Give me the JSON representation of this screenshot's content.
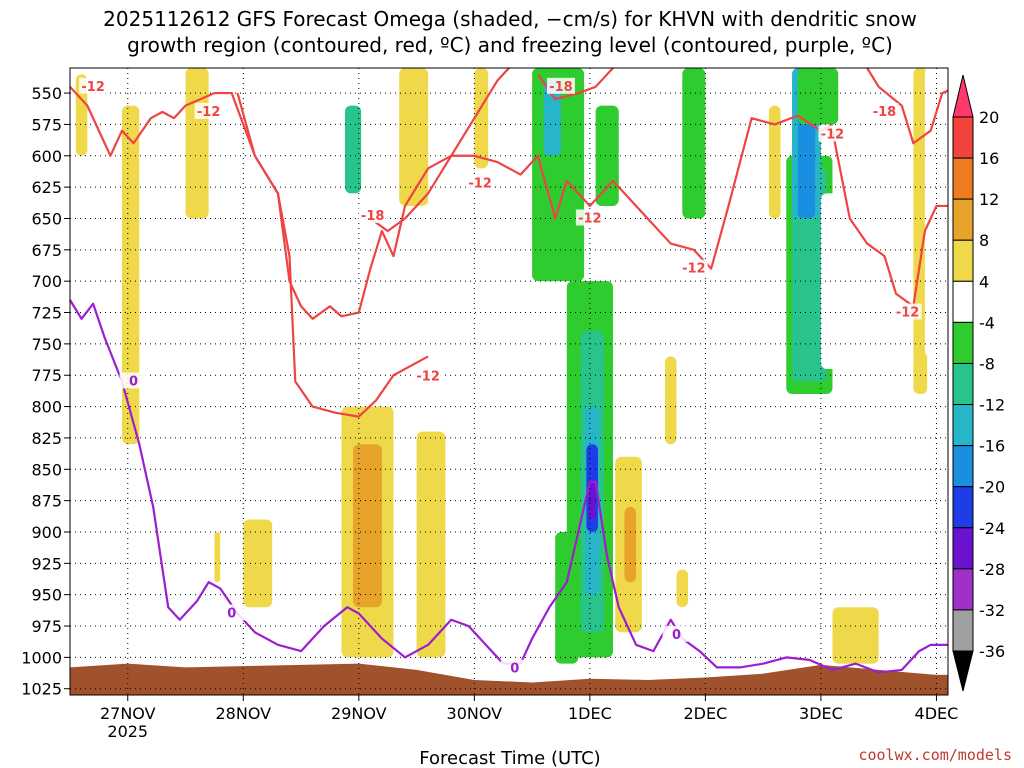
{
  "chart_data": {
    "type": "time-height cross-section",
    "title_line1": "2025112612 GFS Forecast Omega (shaded, −cm/s) for KHVN with dendritic snow",
    "title_line2": "growth region (contoured, red, ºC) and freezing level (contoured, purple, ºC)",
    "xlabel": "Forecast Time (UTC)",
    "credit": "coolwx.com/models",
    "y_ticks": [
      550,
      575,
      600,
      625,
      650,
      675,
      700,
      725,
      750,
      775,
      800,
      825,
      850,
      875,
      900,
      925,
      950,
      975,
      1000,
      1025
    ],
    "y_range": [
      530,
      1030
    ],
    "x_range": [
      0,
      7.6
    ],
    "x_ticks": [
      {
        "t": 0.5,
        "label": "27NOV",
        "sub": "2025"
      },
      {
        "t": 1.5,
        "label": "28NOV",
        "sub": ""
      },
      {
        "t": 2.5,
        "label": "29NOV",
        "sub": ""
      },
      {
        "t": 3.5,
        "label": "30NOV",
        "sub": ""
      },
      {
        "t": 4.5,
        "label": "1DEC",
        "sub": ""
      },
      {
        "t": 5.5,
        "label": "2DEC",
        "sub": ""
      },
      {
        "t": 6.5,
        "label": "3DEC",
        "sub": ""
      },
      {
        "t": 7.5,
        "label": "4DEC",
        "sub": ""
      }
    ],
    "colorbar": {
      "labels": [
        20,
        16,
        12,
        8,
        4,
        -4,
        -8,
        -12,
        -16,
        -20,
        -24,
        -28,
        -32,
        -36
      ],
      "colors": [
        "#ff3a6a",
        "#f2433c",
        "#ee7b20",
        "#e8a42a",
        "#efd84a",
        "#ffffff",
        "#2ecc2e",
        "#29c48b",
        "#27b5c9",
        "#1a8fe0",
        "#1f3de6",
        "#6a12d0",
        "#a12fc9",
        "#a0a0a0"
      ]
    },
    "shaded_omega": [
      {
        "t0": 0.05,
        "t1": 0.15,
        "p0": 535,
        "p1": 600,
        "v": 4
      },
      {
        "t0": 0.45,
        "t1": 0.6,
        "p0": 560,
        "p1": 830,
        "v": 4
      },
      {
        "t0": 0.6,
        "t1": 0.72,
        "p0": 560,
        "p1": 700,
        "v": -4
      },
      {
        "t0": 1.0,
        "t1": 1.2,
        "p0": 530,
        "p1": 650,
        "v": 4
      },
      {
        "t0": 1.5,
        "t1": 1.75,
        "p0": 890,
        "p1": 960,
        "v": 4
      },
      {
        "t0": 1.25,
        "t1": 1.3,
        "p0": 900,
        "p1": 940,
        "v": 4
      },
      {
        "t0": 2.15,
        "t1": 2.35,
        "p0": 740,
        "p1": 900,
        "v": -4
      },
      {
        "t0": 2.3,
        "t1": 2.65,
        "p0": 530,
        "p1": 660,
        "v": -4
      },
      {
        "t0": 2.38,
        "t1": 2.52,
        "p0": 560,
        "p1": 630,
        "v": -12
      },
      {
        "t0": 2.35,
        "t1": 2.8,
        "p0": 800,
        "p1": 1000,
        "v": 4
      },
      {
        "t0": 2.45,
        "t1": 2.7,
        "p0": 830,
        "p1": 960,
        "v": 8
      },
      {
        "t0": 2.95,
        "t1": 3.15,
        "p0": 700,
        "p1": 780,
        "v": -4
      },
      {
        "t0": 2.85,
        "t1": 3.1,
        "p0": 530,
        "p1": 640,
        "v": 4
      },
      {
        "t0": 3.0,
        "t1": 3.25,
        "p0": 820,
        "p1": 1000,
        "v": 4
      },
      {
        "t0": 3.3,
        "t1": 3.5,
        "p0": 560,
        "p1": 670,
        "v": -4
      },
      {
        "t0": 3.5,
        "t1": 3.62,
        "p0": 530,
        "p1": 610,
        "v": 4
      },
      {
        "t0": 3.9,
        "t1": 4.3,
        "p0": 830,
        "p1": 1010,
        "v": -4
      },
      {
        "t0": 4.2,
        "t1": 4.4,
        "p0": 900,
        "p1": 1005,
        "v": -8
      },
      {
        "t0": 4.3,
        "t1": 4.38,
        "p0": 920,
        "p1": 990,
        "v": -12
      },
      {
        "t0": 4.3,
        "t1": 4.7,
        "p0": 700,
        "p1": 1000,
        "v": -8
      },
      {
        "t0": 4.42,
        "t1": 4.62,
        "p0": 740,
        "p1": 980,
        "v": -12
      },
      {
        "t0": 4.46,
        "t1": 4.58,
        "p0": 800,
        "p1": 950,
        "v": -16
      },
      {
        "t0": 4.47,
        "t1": 4.57,
        "p0": 830,
        "p1": 900,
        "v": -24
      },
      {
        "t0": 4.49,
        "t1": 4.55,
        "p0": 860,
        "p1": 890,
        "v": -28
      },
      {
        "t0": 4.0,
        "t1": 4.45,
        "p0": 530,
        "p1": 700,
        "v": -8
      },
      {
        "t0": 4.1,
        "t1": 4.25,
        "p0": 540,
        "p1": 600,
        "v": -16
      },
      {
        "t0": 4.55,
        "t1": 4.75,
        "p0": 560,
        "p1": 640,
        "v": -8
      },
      {
        "t0": 4.72,
        "t1": 4.95,
        "p0": 840,
        "p1": 980,
        "v": 4
      },
      {
        "t0": 4.8,
        "t1": 4.9,
        "p0": 880,
        "p1": 940,
        "v": 8
      },
      {
        "t0": 5.15,
        "t1": 5.25,
        "p0": 760,
        "p1": 830,
        "v": 4
      },
      {
        "t0": 5.25,
        "t1": 5.35,
        "p0": 930,
        "p1": 960,
        "v": 4
      },
      {
        "t0": 5.3,
        "t1": 5.5,
        "p0": 530,
        "p1": 650,
        "v": -8
      },
      {
        "t0": 5.6,
        "t1": 5.75,
        "p0": 530,
        "p1": 740,
        "v": -4
      },
      {
        "t0": 5.8,
        "t1": 6.0,
        "p0": 560,
        "p1": 860,
        "v": -4
      },
      {
        "t0": 6.05,
        "t1": 6.15,
        "p0": 560,
        "p1": 650,
        "v": 4
      },
      {
        "t0": 6.05,
        "t1": 6.25,
        "p0": 720,
        "p1": 960,
        "v": -4
      },
      {
        "t0": 6.2,
        "t1": 6.6,
        "p0": 600,
        "p1": 790,
        "v": -8
      },
      {
        "t0": 6.25,
        "t1": 6.55,
        "p0": 610,
        "p1": 780,
        "v": -12
      },
      {
        "t0": 6.25,
        "t1": 6.5,
        "p0": 530,
        "p1": 650,
        "v": -16
      },
      {
        "t0": 6.3,
        "t1": 6.45,
        "p0": 560,
        "p1": 650,
        "v": -20
      },
      {
        "t0": 6.32,
        "t1": 6.42,
        "p0": 530,
        "p1": 560,
        "v": -24
      },
      {
        "t0": 6.3,
        "t1": 6.65,
        "p0": 530,
        "p1": 575,
        "v": -8
      },
      {
        "t0": 6.65,
        "t1": 6.75,
        "p0": 940,
        "p1": 960,
        "v": -4
      },
      {
        "t0": 6.6,
        "t1": 7.0,
        "p0": 960,
        "p1": 1005,
        "v": 4
      },
      {
        "t0": 6.5,
        "t1": 6.65,
        "p0": 630,
        "p1": 770,
        "v": -4
      },
      {
        "t0": 7.3,
        "t1": 7.42,
        "p0": 530,
        "p1": 790,
        "v": 4
      },
      {
        "t0": 7.4,
        "t1": 7.5,
        "p0": 530,
        "p1": 760,
        "v": -4
      }
    ],
    "surface": [
      {
        "t": 0.0,
        "p": 1008
      },
      {
        "t": 0.5,
        "p": 1005
      },
      {
        "t": 1.0,
        "p": 1008
      },
      {
        "t": 1.5,
        "p": 1007
      },
      {
        "t": 2.0,
        "p": 1006
      },
      {
        "t": 2.5,
        "p": 1005
      },
      {
        "t": 3.0,
        "p": 1010
      },
      {
        "t": 3.5,
        "p": 1018
      },
      {
        "t": 4.0,
        "p": 1020
      },
      {
        "t": 4.5,
        "p": 1017
      },
      {
        "t": 5.0,
        "p": 1018
      },
      {
        "t": 5.5,
        "p": 1016
      },
      {
        "t": 6.0,
        "p": 1013
      },
      {
        "t": 6.5,
        "p": 1006
      },
      {
        "t": 7.0,
        "p": 1010
      },
      {
        "t": 7.5,
        "p": 1014
      }
    ],
    "contours": [
      {
        "name": "-12C upper",
        "color": "#ee4444",
        "points": [
          [
            0.0,
            545
          ],
          [
            0.15,
            560
          ],
          [
            0.3,
            590
          ],
          [
            0.35,
            600
          ],
          [
            0.45,
            580
          ],
          [
            0.55,
            590
          ],
          [
            0.7,
            570
          ],
          [
            0.8,
            565
          ],
          [
            0.9,
            570
          ],
          [
            1.0,
            560
          ],
          [
            1.25,
            550
          ],
          [
            1.4,
            550
          ],
          [
            1.6,
            600
          ],
          [
            1.8,
            630
          ],
          [
            1.9,
            700
          ],
          [
            2.0,
            720
          ],
          [
            2.1,
            730
          ],
          [
            2.25,
            720
          ],
          [
            2.35,
            728
          ],
          [
            2.5,
            725
          ],
          [
            2.6,
            690
          ],
          [
            2.7,
            660
          ],
          [
            2.8,
            680
          ],
          [
            2.9,
            640
          ],
          [
            3.0,
            625
          ],
          [
            3.1,
            610
          ],
          [
            3.3,
            600
          ],
          [
            3.5,
            600
          ],
          [
            3.7,
            605
          ],
          [
            3.9,
            615
          ],
          [
            4.05,
            600
          ],
          [
            4.2,
            650
          ],
          [
            4.3,
            620
          ],
          [
            4.5,
            640
          ],
          [
            4.7,
            620
          ],
          [
            4.8,
            630
          ],
          [
            5.0,
            650
          ],
          [
            5.2,
            670
          ],
          [
            5.4,
            675
          ],
          [
            5.55,
            690
          ],
          [
            5.7,
            640
          ],
          [
            5.9,
            570
          ],
          [
            6.1,
            575
          ],
          [
            6.3,
            568
          ],
          [
            6.5,
            580
          ],
          [
            6.6,
            575
          ]
        ]
      },
      {
        "name": "-12C lower",
        "color": "#ee4444",
        "points": [
          [
            1.45,
            550
          ],
          [
            1.6,
            600
          ],
          [
            1.8,
            630
          ],
          [
            1.9,
            680
          ],
          [
            1.95,
            780
          ],
          [
            2.1,
            800
          ],
          [
            2.3,
            805
          ],
          [
            2.5,
            808
          ],
          [
            2.65,
            795
          ],
          [
            2.8,
            775
          ],
          [
            3.0,
            765
          ],
          [
            3.1,
            760
          ]
        ]
      },
      {
        "name": "-18C",
        "color": "#ee4444",
        "points": [
          [
            2.6,
            650
          ],
          [
            2.75,
            660
          ],
          [
            2.9,
            650
          ],
          [
            3.1,
            630
          ],
          [
            3.3,
            600
          ],
          [
            3.5,
            570
          ],
          [
            3.7,
            540
          ],
          [
            3.8,
            530
          ]
        ]
      },
      {
        "name": "-18C right",
        "color": "#ee4444",
        "points": [
          [
            4.05,
            535
          ],
          [
            4.2,
            555
          ],
          [
            4.4,
            550
          ],
          [
            4.55,
            545
          ],
          [
            4.7,
            530
          ]
        ]
      },
      {
        "name": "-12C far right",
        "color": "#ee4444",
        "points": [
          [
            6.9,
            530
          ],
          [
            7.0,
            545
          ],
          [
            7.2,
            560
          ],
          [
            7.3,
            590
          ],
          [
            7.45,
            580
          ],
          [
            7.55,
            550
          ],
          [
            7.6,
            548
          ]
        ]
      },
      {
        "name": "-12C far right low",
        "color": "#ee4444",
        "points": [
          [
            6.6,
            580
          ],
          [
            6.75,
            650
          ],
          [
            6.9,
            670
          ],
          [
            7.05,
            680
          ],
          [
            7.15,
            710
          ],
          [
            7.3,
            720
          ],
          [
            7.4,
            660
          ],
          [
            7.5,
            640
          ],
          [
            7.6,
            640
          ]
        ]
      },
      {
        "name": "0C freezing",
        "color": "#9b1fd0",
        "points": [
          [
            0.0,
            715
          ],
          [
            0.1,
            730
          ],
          [
            0.2,
            718
          ],
          [
            0.3,
            745
          ],
          [
            0.45,
            780
          ],
          [
            0.6,
            830
          ],
          [
            0.72,
            880
          ],
          [
            0.85,
            960
          ],
          [
            0.95,
            970
          ],
          [
            1.1,
            955
          ],
          [
            1.2,
            940
          ],
          [
            1.3,
            945
          ],
          [
            1.45,
            965
          ],
          [
            1.6,
            980
          ],
          [
            1.8,
            990
          ],
          [
            2.0,
            995
          ],
          [
            2.2,
            975
          ],
          [
            2.4,
            960
          ],
          [
            2.5,
            965
          ],
          [
            2.7,
            985
          ],
          [
            2.9,
            1000
          ],
          [
            3.1,
            990
          ],
          [
            3.3,
            970
          ],
          [
            3.45,
            975
          ],
          [
            3.6,
            990
          ],
          [
            3.75,
            1005
          ],
          [
            3.9,
            1005
          ],
          [
            4.0,
            985
          ],
          [
            4.15,
            960
          ],
          [
            4.3,
            940
          ],
          [
            4.45,
            880
          ],
          [
            4.5,
            860
          ],
          [
            4.55,
            860
          ],
          [
            4.65,
            920
          ],
          [
            4.75,
            960
          ],
          [
            4.9,
            990
          ],
          [
            5.05,
            995
          ],
          [
            5.2,
            970
          ],
          [
            5.3,
            985
          ],
          [
            5.45,
            995
          ],
          [
            5.6,
            1008
          ],
          [
            5.8,
            1008
          ],
          [
            6.0,
            1005
          ],
          [
            6.2,
            1000
          ],
          [
            6.4,
            1002
          ],
          [
            6.6,
            1010
          ],
          [
            6.8,
            1005
          ],
          [
            7.0,
            1012
          ],
          [
            7.2,
            1010
          ],
          [
            7.35,
            995
          ],
          [
            7.45,
            990
          ],
          [
            7.6,
            990
          ]
        ]
      }
    ],
    "contour_labels": [
      {
        "t": 0.2,
        "p": 545,
        "text": "-12",
        "color": "#ee4444"
      },
      {
        "t": 1.2,
        "p": 565,
        "text": "-12",
        "color": "#ee4444"
      },
      {
        "t": 2.62,
        "p": 648,
        "text": "-18",
        "color": "#ee4444"
      },
      {
        "t": 3.55,
        "p": 622,
        "text": "-12",
        "color": "#ee4444"
      },
      {
        "t": 3.1,
        "p": 776,
        "text": "-12",
        "color": "#ee4444"
      },
      {
        "t": 4.25,
        "p": 545,
        "text": "-18",
        "color": "#ee4444"
      },
      {
        "t": 4.5,
        "p": 650,
        "text": "-12",
        "color": "#ee4444"
      },
      {
        "t": 5.4,
        "p": 690,
        "text": "-12",
        "color": "#ee4444"
      },
      {
        "t": 6.6,
        "p": 583,
        "text": "-12",
        "color": "#ee4444"
      },
      {
        "t": 7.05,
        "p": 565,
        "text": "-18",
        "color": "#ee4444"
      },
      {
        "t": 7.25,
        "p": 725,
        "text": "-12",
        "color": "#ee4444"
      },
      {
        "t": 0.55,
        "p": 780,
        "text": "0",
        "color": "#9b1fd0"
      },
      {
        "t": 1.4,
        "p": 965,
        "text": "0",
        "color": "#9b1fd0"
      },
      {
        "t": 3.85,
        "p": 1009,
        "text": "0",
        "color": "#9b1fd0"
      },
      {
        "t": 5.25,
        "p": 982,
        "text": "0",
        "color": "#9b1fd0"
      }
    ],
    "colors": {
      "surface": "#a0522d",
      "grid": "#000000",
      "dcz": "#ee4444",
      "freezing": "#9b1fd0"
    }
  }
}
